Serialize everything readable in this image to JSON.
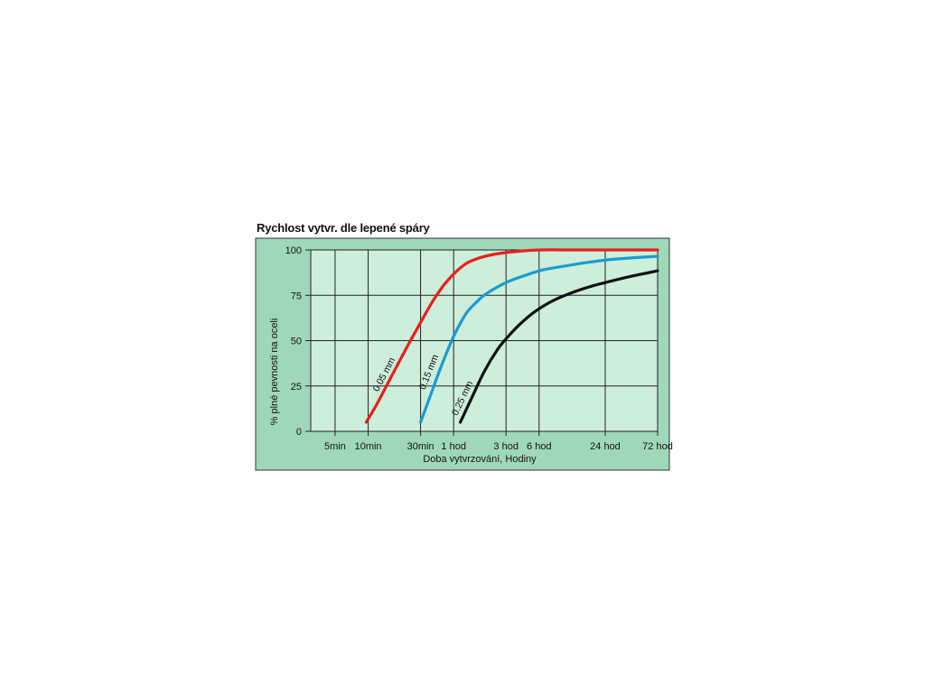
{
  "colors": {
    "frame_fill": "#9fd8b9",
    "plot_fill": "#cdeedb",
    "grid": "#222222",
    "border": "#333333"
  },
  "chart_data": {
    "type": "line",
    "title": "Rychlost vytvr. dle lepené spáry",
    "xlabel": "Doba vytvrzování, Hodiny",
    "ylabel": "% plné pevnosti na oceli",
    "x_scale": "log",
    "x_unit": "hours",
    "xlim": [
      0.05,
      72
    ],
    "ylim": [
      0,
      100
    ],
    "grid": true,
    "x_ticks": [
      {
        "label": "5min",
        "value": 0.0833
      },
      {
        "label": "10min",
        "value": 0.1667
      },
      {
        "label": "30min",
        "value": 0.5
      },
      {
        "label": "1 hod",
        "value": 1
      },
      {
        "label": "3 hod",
        "value": 3
      },
      {
        "label": "6 hod",
        "value": 6
      },
      {
        "label": "24 hod",
        "value": 24
      },
      {
        "label": "72 hod",
        "value": 72
      }
    ],
    "y_ticks": [
      0,
      25,
      50,
      75,
      100
    ],
    "series": [
      {
        "name": "0.05 mm",
        "color": "#e8201a",
        "x": [
          0.16,
          0.2,
          0.27,
          0.38,
          0.5,
          0.65,
          0.85,
          1.2,
          1.6,
          2.3,
          3.5,
          6,
          12,
          72
        ],
        "y": [
          5,
          15,
          30,
          47,
          60,
          72,
          82,
          91,
          95,
          97.5,
          99,
          100,
          100,
          100
        ]
      },
      {
        "name": "0.15 mm",
        "color": "#1a9bd0",
        "x": [
          0.5,
          0.6,
          0.75,
          0.9,
          1.05,
          1.3,
          1.6,
          2.0,
          3,
          4.5,
          6.5,
          10,
          16,
          30,
          72
        ],
        "y": [
          5,
          18,
          34,
          46,
          55,
          65,
          71,
          76,
          82,
          86,
          89,
          91,
          93,
          95,
          96.5
        ]
      },
      {
        "name": "0.25 mm",
        "color": "#111111",
        "x": [
          1.15,
          1.45,
          1.9,
          2.5,
          3,
          4,
          5.5,
          8,
          12,
          18,
          24,
          35,
          50,
          72
        ],
        "y": [
          5,
          18,
          33,
          45,
          51,
          59,
          66,
          72,
          76.5,
          80,
          82,
          84.5,
          86.5,
          88.5
        ]
      }
    ]
  }
}
